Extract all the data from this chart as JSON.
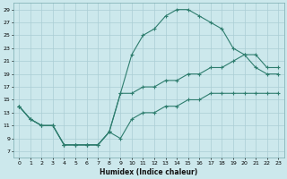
{
  "xlabel": "Humidex (Indice chaleur)",
  "background_color": "#cce8ec",
  "grid_color": "#aacdd4",
  "line_color": "#2e7d6e",
  "series1_y": [
    14,
    12,
    11,
    11,
    8,
    8,
    8,
    8,
    10,
    16,
    22,
    25,
    26,
    28,
    29,
    29,
    28,
    27,
    26,
    23,
    22,
    20,
    19,
    19
  ],
  "series2_y": [
    14,
    12,
    11,
    11,
    8,
    8,
    8,
    8,
    10,
    9,
    12,
    13,
    13,
    14,
    14,
    15,
    15,
    16,
    16,
    16,
    16,
    16,
    16,
    16
  ],
  "series3_y": [
    14,
    12,
    11,
    11,
    8,
    8,
    8,
    8,
    10,
    16,
    16,
    17,
    17,
    18,
    18,
    19,
    19,
    20,
    20,
    21,
    22,
    22,
    20,
    20
  ],
  "ylim": [
    6,
    30
  ],
  "xlim": [
    -0.5,
    23.5
  ],
  "yticks": [
    7,
    9,
    11,
    13,
    15,
    17,
    19,
    21,
    23,
    25,
    27,
    29
  ],
  "xticks": [
    0,
    1,
    2,
    3,
    4,
    5,
    6,
    7,
    8,
    9,
    10,
    11,
    12,
    13,
    14,
    15,
    16,
    17,
    18,
    19,
    20,
    21,
    22,
    23
  ]
}
